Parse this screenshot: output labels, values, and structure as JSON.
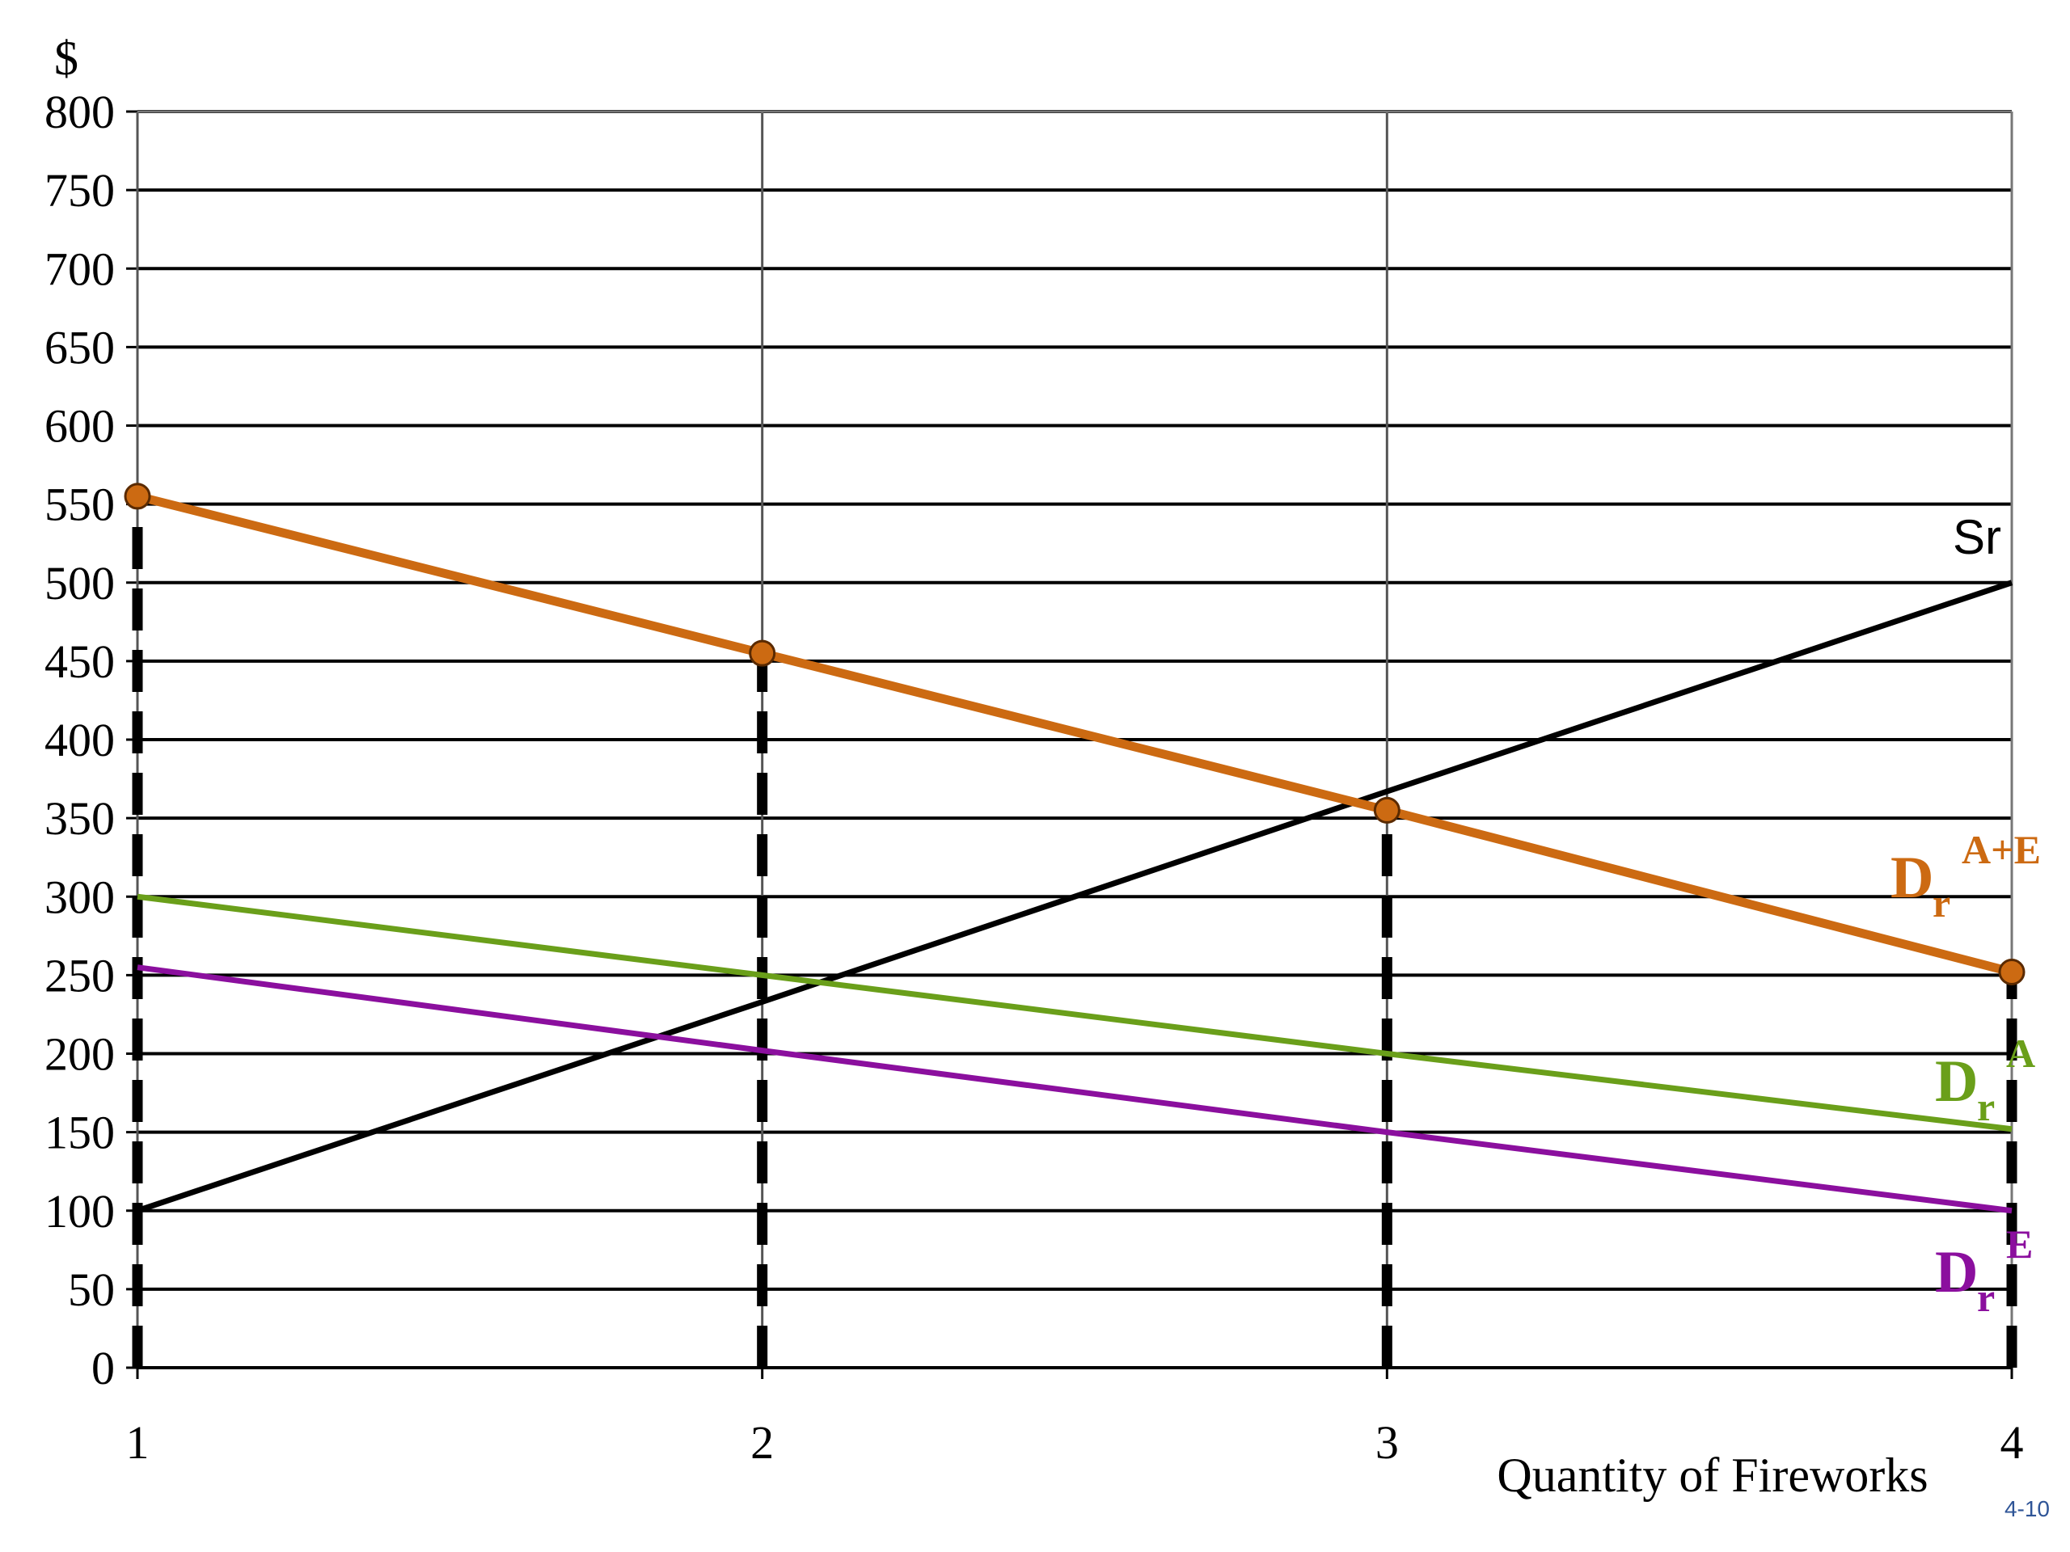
{
  "chart_data": {
    "type": "line",
    "ylabel": "$",
    "xlabel": "Quantity of Fireworks",
    "x": [
      1,
      2,
      3,
      4
    ],
    "xlim": [
      1,
      4
    ],
    "ylim": [
      0,
      800
    ],
    "y_ticks": [
      "0",
      "50",
      "100",
      "150",
      "200",
      "250",
      "300",
      "350",
      "400",
      "450",
      "500",
      "550",
      "600",
      "650",
      "700",
      "750",
      "800"
    ],
    "x_ticks": [
      "1",
      "2",
      "3",
      "4"
    ],
    "grid": "horizontal every 50, vertical at each quantity",
    "series": [
      {
        "name": "Sr",
        "label_main": "Sr",
        "label_sub": "",
        "label_sup": "",
        "color": "#000000",
        "values": [
          100,
          233,
          367,
          500
        ],
        "markers": false
      },
      {
        "name": "Dr A+E",
        "label_main": "D",
        "label_sub": "r",
        "label_sup": "A+E",
        "color": "#cc6a12",
        "values": [
          555,
          455,
          355,
          252
        ],
        "markers": true
      },
      {
        "name": "Dr A",
        "label_main": "D",
        "label_sub": "r",
        "label_sup": "A",
        "color": "#6a9f1a",
        "values": [
          300,
          250,
          200,
          152
        ],
        "markers": false
      },
      {
        "name": "Dr E",
        "label_main": "D",
        "label_sub": "r",
        "label_sup": "E",
        "color": "#8b0f9e",
        "values": [
          255,
          202,
          150,
          100
        ],
        "markers": false
      }
    ],
    "dashed_verticals": [
      {
        "x": 1,
        "from": 0,
        "to": 555
      },
      {
        "x": 2,
        "from": 0,
        "to": 455
      },
      {
        "x": 3,
        "from": 0,
        "to": 355
      },
      {
        "x": 4,
        "from": 0,
        "to": 252
      }
    ]
  },
  "slide_number": "4-10"
}
